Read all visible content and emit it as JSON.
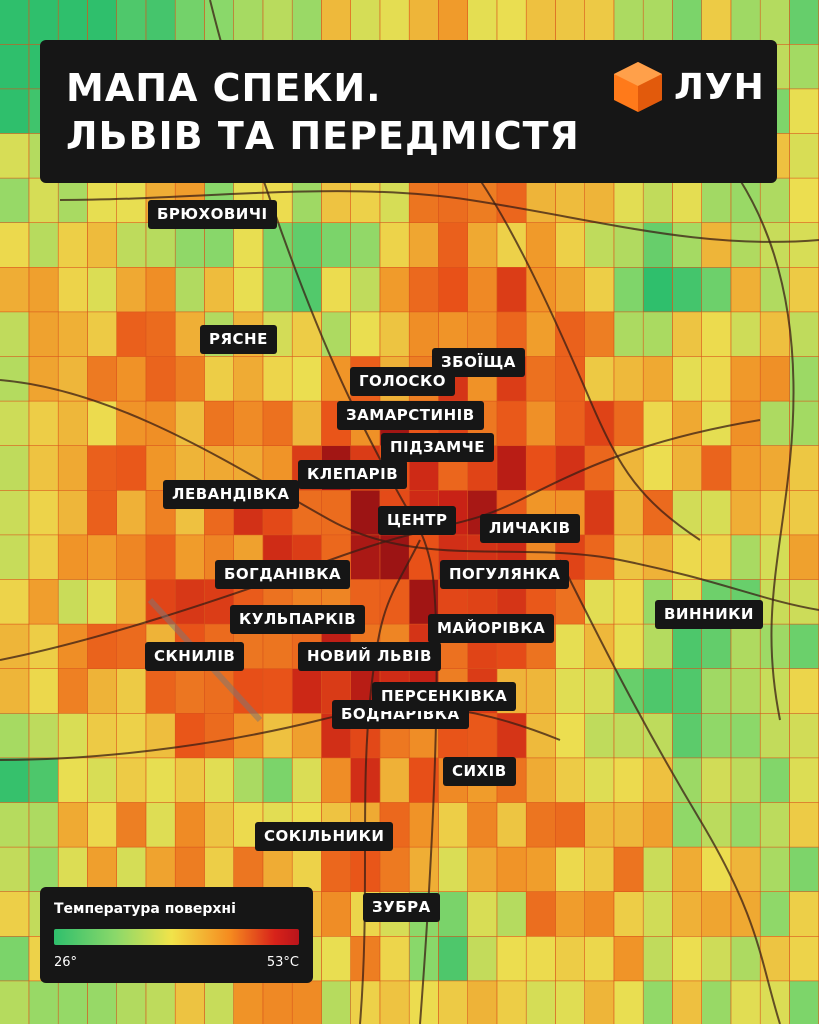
{
  "header": {
    "title_lines": [
      "МАПА СПЕКИ.",
      "ЛЬВІВ ТА ПЕРЕДМІСТЯ"
    ],
    "logo": "ЛУН"
  },
  "districts": [
    "БРЮХОВИЧІ",
    "РЯСНЕ",
    "ЗБОЇЩА",
    "ГОЛОСКО",
    "ЗАМАРСТИНІВ",
    "ПІДЗАМЧЕ",
    "КЛЕПАРІВ",
    "ЛЕВАНДІВКА",
    "ЦЕНТР",
    "ЛИЧАКІВ",
    "БОГДАНІВКА",
    "ПОГУЛЯНКА",
    "ВИННИКИ",
    "КУЛЬПАРКІВ",
    "МАЙОРІВКА",
    "СКНИЛІВ",
    "НОВИЙ ЛЬВІВ",
    "БОДНАРІВКА",
    "ПЕРСЕНКІВКА",
    "СИХІВ",
    "СОКІЛЬНИКИ",
    "ЗУБРА"
  ],
  "legend": {
    "title": "Температура поверхні",
    "min_label": "26°",
    "max_label": "53°C"
  }
}
